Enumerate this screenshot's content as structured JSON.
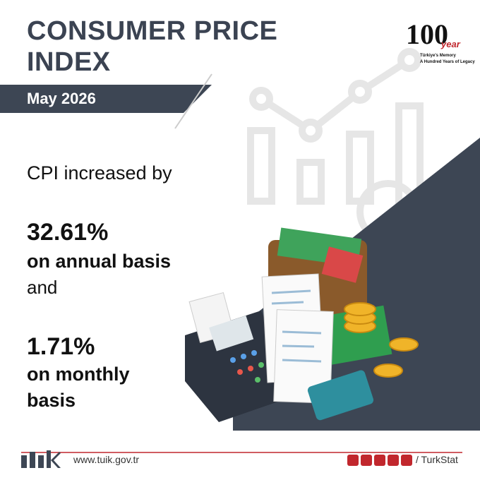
{
  "header": {
    "title": "CONSUMER PRICE INDEX",
    "period": "May 2026"
  },
  "logo": {
    "number": "100",
    "word": "year",
    "line1": "Türkiye's Memory",
    "line2": "A Hundred Years of Legacy"
  },
  "body": {
    "intro": "CPI increased by",
    "annual_value": "32.61%",
    "annual_label": "on annual basis",
    "connector": "and",
    "monthly_value": "1.71%",
    "monthly_label": "on monthly basis"
  },
  "footer": {
    "website": "www.tuik.gov.tr",
    "handle": "/ TurkStat"
  }
}
